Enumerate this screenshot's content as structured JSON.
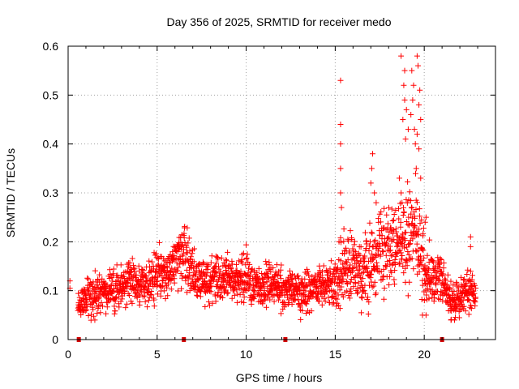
{
  "chart_data": {
    "type": "scatter",
    "title": "Day 356 of 2025, SRMTID for receiver medo",
    "xlabel": "GPS time / hours",
    "ylabel": "SRMTID / TECUs",
    "xlim": [
      0,
      24
    ],
    "ylim": [
      0,
      0.6
    ],
    "grid": true,
    "marker": "+",
    "color": "#ff0000",
    "x_ticks": [
      0,
      5,
      10,
      15,
      20
    ],
    "x_tick_labels": [
      "0",
      "5",
      "10",
      "15",
      "20"
    ],
    "y_ticks": [
      0,
      0.1,
      0.2,
      0.3,
      0.4,
      0.5,
      0.6
    ],
    "y_tick_labels": [
      "0",
      "0.1",
      "0.2",
      "0.3",
      "0.4",
      "0.5",
      "0.6"
    ],
    "baseline_markers_hours": [
      0.6,
      6.5,
      12.2,
      21.0
    ],
    "envelope": {
      "description": "approximate running median (mid) and spread (spread) of SRMTID, sampled every 0.5 h",
      "hours": [
        0,
        0.5,
        1,
        1.5,
        2,
        2.5,
        3,
        3.5,
        4,
        4.5,
        5,
        5.5,
        6,
        6.5,
        7,
        7.5,
        8,
        8.5,
        9,
        9.5,
        10,
        10.5,
        11,
        11.5,
        12,
        12.5,
        13,
        13.5,
        14,
        14.5,
        15,
        15.5,
        16,
        16.5,
        17,
        17.5,
        18,
        18.5,
        19,
        19.5,
        20,
        20.5,
        21,
        21.5,
        22,
        22.5,
        23
      ],
      "mid": [
        0.1,
        0.07,
        0.09,
        0.09,
        0.1,
        0.1,
        0.11,
        0.12,
        0.11,
        0.11,
        0.14,
        0.13,
        0.16,
        0.18,
        0.13,
        0.12,
        0.12,
        0.12,
        0.13,
        0.12,
        0.13,
        0.11,
        0.11,
        0.12,
        0.1,
        0.1,
        0.09,
        0.1,
        0.11,
        0.11,
        0.12,
        0.14,
        0.15,
        0.13,
        0.16,
        0.18,
        0.18,
        0.2,
        0.22,
        0.23,
        0.14,
        0.13,
        0.12,
        0.08,
        0.09,
        0.1,
        0.07
      ],
      "spread": [
        0.02,
        0.02,
        0.03,
        0.03,
        0.03,
        0.03,
        0.03,
        0.03,
        0.03,
        0.03,
        0.04,
        0.04,
        0.04,
        0.05,
        0.04,
        0.03,
        0.04,
        0.03,
        0.03,
        0.03,
        0.04,
        0.03,
        0.03,
        0.03,
        0.03,
        0.03,
        0.03,
        0.03,
        0.03,
        0.03,
        0.04,
        0.06,
        0.05,
        0.05,
        0.06,
        0.06,
        0.06,
        0.06,
        0.07,
        0.07,
        0.05,
        0.04,
        0.03,
        0.03,
        0.03,
        0.03,
        0.02
      ]
    },
    "highlights": [
      {
        "x": 15.3,
        "y": 0.53
      },
      {
        "x": 15.3,
        "y": 0.44
      },
      {
        "x": 15.3,
        "y": 0.4
      },
      {
        "x": 15.3,
        "y": 0.35
      },
      {
        "x": 15.3,
        "y": 0.3
      },
      {
        "x": 15.35,
        "y": 0.27
      },
      {
        "x": 17.1,
        "y": 0.38
      },
      {
        "x": 17.05,
        "y": 0.35
      },
      {
        "x": 17.0,
        "y": 0.32
      },
      {
        "x": 17.2,
        "y": 0.3
      },
      {
        "x": 17.3,
        "y": 0.28
      },
      {
        "x": 18.7,
        "y": 0.58
      },
      {
        "x": 18.9,
        "y": 0.55
      },
      {
        "x": 18.85,
        "y": 0.52
      },
      {
        "x": 18.9,
        "y": 0.49
      },
      {
        "x": 19.0,
        "y": 0.47
      },
      {
        "x": 18.8,
        "y": 0.45
      },
      {
        "x": 19.1,
        "y": 0.43
      },
      {
        "x": 18.95,
        "y": 0.41
      },
      {
        "x": 18.6,
        "y": 0.33
      },
      {
        "x": 18.7,
        "y": 0.3
      },
      {
        "x": 18.75,
        "y": 0.28
      },
      {
        "x": 19.3,
        "y": 0.55
      },
      {
        "x": 19.4,
        "y": 0.52
      },
      {
        "x": 19.35,
        "y": 0.49
      },
      {
        "x": 19.25,
        "y": 0.46
      },
      {
        "x": 19.45,
        "y": 0.43
      },
      {
        "x": 19.5,
        "y": 0.4
      },
      {
        "x": 19.6,
        "y": 0.58
      },
      {
        "x": 19.65,
        "y": 0.56
      },
      {
        "x": 19.75,
        "y": 0.51
      },
      {
        "x": 19.7,
        "y": 0.48
      },
      {
        "x": 19.8,
        "y": 0.45
      },
      {
        "x": 19.6,
        "y": 0.42
      },
      {
        "x": 19.7,
        "y": 0.39
      },
      {
        "x": 19.55,
        "y": 0.35
      },
      {
        "x": 19.8,
        "y": 0.33
      },
      {
        "x": 20.1,
        "y": 0.25
      },
      {
        "x": 20.05,
        "y": 0.24
      },
      {
        "x": 19.9,
        "y": 0.05
      },
      {
        "x": 20.1,
        "y": 0.05
      },
      {
        "x": 21.5,
        "y": 0.04
      },
      {
        "x": 21.7,
        "y": 0.04
      },
      {
        "x": 22.6,
        "y": 0.21
      },
      {
        "x": 22.6,
        "y": 0.19
      },
      {
        "x": 1.5,
        "y": 0.04
      },
      {
        "x": 0.1,
        "y": 0.12
      },
      {
        "x": 0.1,
        "y": 0.105
      }
    ]
  }
}
